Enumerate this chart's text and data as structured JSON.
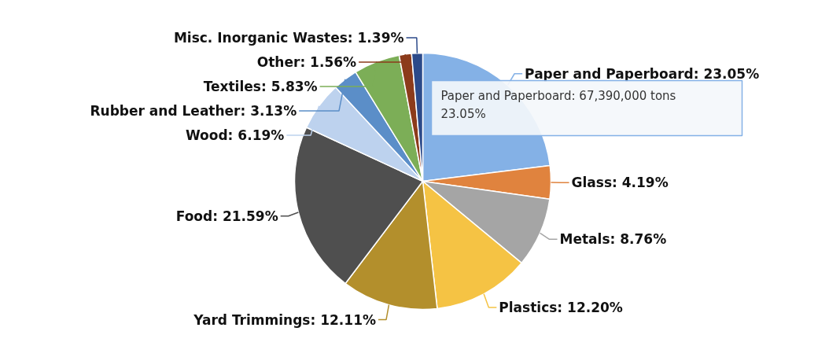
{
  "chart_data": {
    "type": "pie",
    "data_labels": true,
    "categories": [
      "Paper and Paperboard",
      "Glass",
      "Metals",
      "Plastics",
      "Yard Trimmings",
      "Food",
      "Wood",
      "Rubber and Leather",
      "Textiles",
      "Other",
      "Misc. Inorganic Wastes"
    ],
    "values": [
      23.05,
      4.19,
      8.76,
      12.2,
      12.11,
      21.59,
      6.19,
      3.13,
      5.83,
      1.56,
      1.39
    ],
    "value_labels": [
      "23.05%",
      "4.19%",
      "8.76%",
      "12.20%",
      "12.11%",
      "21.59%",
      "6.19%",
      "3.13%",
      "5.83%",
      "1.56%",
      "1.39%"
    ],
    "colors": [
      "#84b1e6",
      "#e0833e",
      "#a5a5a5",
      "#f5c344",
      "#b38f2c",
      "#4f4f4f",
      "#bdd2ee",
      "#5b8ec8",
      "#7cae57",
      "#8c3b1b",
      "#2c4a8a"
    ],
    "annotations": [
      "Paper and Paperboard: 67,390,000 tons\n23.05%"
    ]
  }
}
